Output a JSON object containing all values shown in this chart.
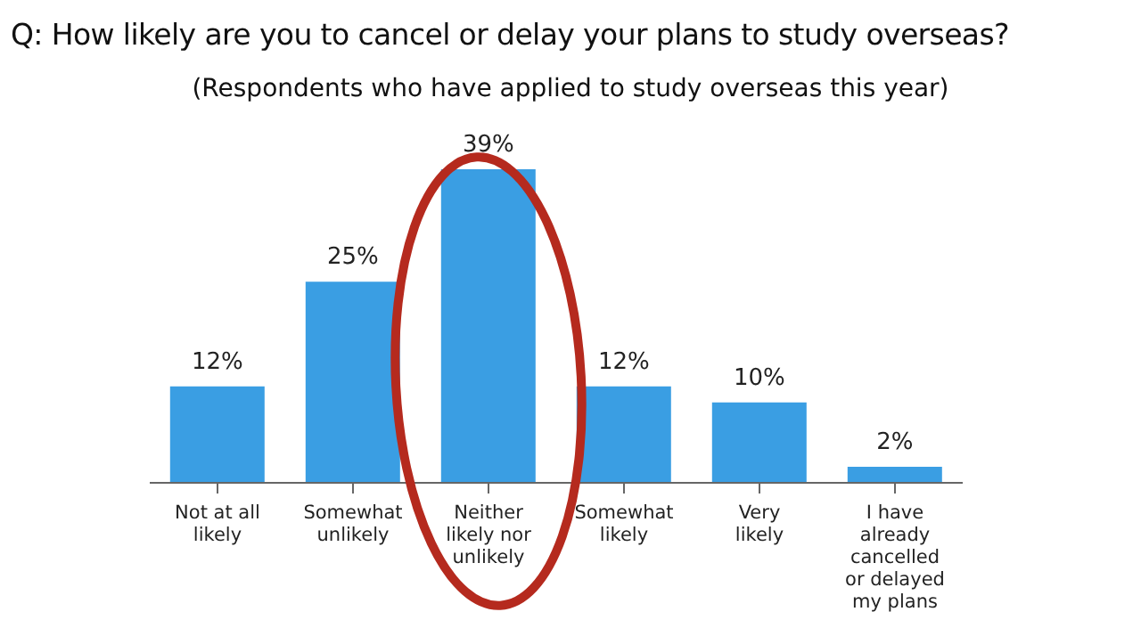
{
  "chart_data": {
    "type": "bar",
    "title": "Q: How likely are you to cancel or delay your plans to study overseas?",
    "subtitle": "(Respondents who have applied to study overseas this year)",
    "categories": [
      "Not at all likely",
      "Somewhat unlikely",
      "Neither likely nor unlikely",
      "Somewhat likely",
      "Very likely",
      "I have already cancelled or delayed my plans"
    ],
    "values": [
      12,
      25,
      39,
      12,
      10,
      2
    ],
    "value_labels": [
      "12%",
      "25%",
      "39%",
      "12%",
      "10%",
      "2%"
    ],
    "color": "#3a9ee3",
    "grid": false,
    "legend": false
  }
}
